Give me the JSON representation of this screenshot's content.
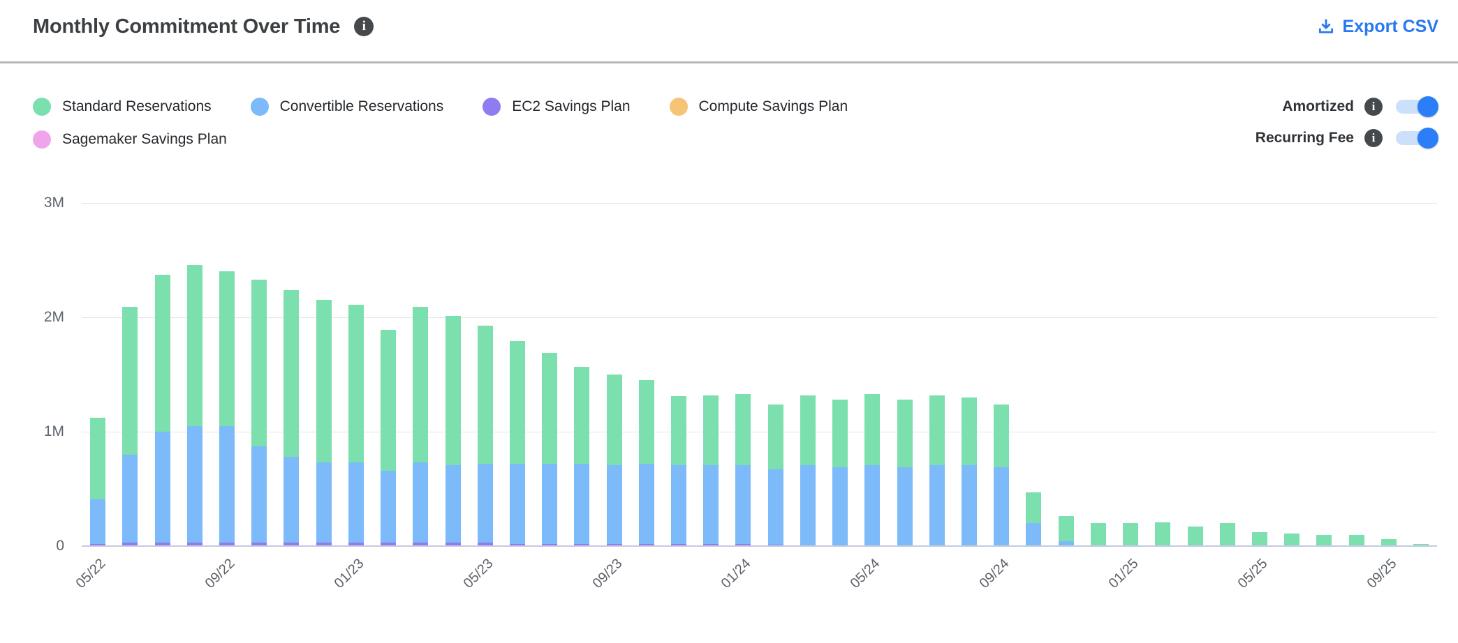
{
  "header": {
    "title": "Monthly Commitment Over Time",
    "export_label": "Export CSV"
  },
  "toggles": [
    {
      "label": "Amortized",
      "state": "on"
    },
    {
      "label": "Recurring Fee",
      "state": "on"
    }
  ],
  "colors": {
    "standard_green": "#7cdfae",
    "convertible_blue": "#7cbafa",
    "ec2_purple": "#8f7cf0",
    "compute_orange": "#f7c374",
    "sagemaker_pink": "#efa5ec",
    "accent_blue": "#2778f2",
    "toggle_track": "#cce0fb",
    "toggle_knob": "#2b7ef7",
    "gridline": "#e4e4e7",
    "axis_line": "#c5cbdf"
  },
  "icons": {
    "title_info": "info-icon",
    "export": "download-icon"
  },
  "chart_data": {
    "type": "bar",
    "stacked": true,
    "title": "Monthly Commitment Over Time",
    "xlabel": "",
    "ylabel": "",
    "ylim": [
      0,
      3
    ],
    "grid": true,
    "legend_position": "top-left",
    "categories": [
      "05/22",
      "06/22",
      "07/22",
      "08/22",
      "09/22",
      "10/22",
      "11/22",
      "12/22",
      "01/23",
      "02/23",
      "03/23",
      "04/23",
      "05/23",
      "06/23",
      "07/23",
      "08/23",
      "09/23",
      "10/23",
      "11/23",
      "12/23",
      "01/24",
      "02/24",
      "03/24",
      "04/24",
      "05/24",
      "06/24",
      "07/24",
      "08/24",
      "09/24",
      "10/24",
      "11/24",
      "12/24",
      "01/25",
      "02/25",
      "03/25",
      "04/25",
      "05/25",
      "06/25",
      "07/25",
      "08/25",
      "09/25",
      "10/25"
    ],
    "x_tick_every": 4,
    "visible_x_ticks": [
      "05/22",
      "09/22",
      "01/23",
      "05/23",
      "09/23",
      "01/24",
      "05/24",
      "09/24",
      "01/25",
      "05/25",
      "09/25"
    ],
    "y_ticks": [
      {
        "label": "3M",
        "value": 3
      },
      {
        "label": "2M",
        "value": 2
      },
      {
        "label": "1M",
        "value": 1
      },
      {
        "label": "0",
        "value": 0
      }
    ],
    "unit": "M (millions)",
    "stack_order_bottom_to_top": [
      "EC2 Savings Plan",
      "Convertible Reservations",
      "Standard Reservations",
      "Compute Savings Plan",
      "Sagemaker Savings Plan"
    ],
    "series": [
      {
        "name": "Standard Reservations",
        "color": "#7cdfae",
        "values": [
          0.71,
          1.29,
          1.37,
          1.41,
          1.35,
          1.46,
          1.46,
          1.42,
          1.38,
          1.23,
          1.36,
          1.3,
          1.21,
          1.07,
          0.97,
          0.85,
          0.79,
          0.73,
          0.6,
          0.61,
          0.62,
          0.57,
          0.61,
          0.59,
          0.62,
          0.59,
          0.61,
          0.59,
          0.55,
          0.27,
          0.22,
          0.2,
          0.2,
          0.21,
          0.17,
          0.2,
          0.12,
          0.11,
          0.1,
          0.1,
          0.06,
          0.02
        ]
      },
      {
        "name": "Convertible Reservations",
        "color": "#7cbafa",
        "values": [
          0.39,
          0.77,
          0.97,
          1.02,
          1.02,
          0.84,
          0.75,
          0.7,
          0.7,
          0.63,
          0.7,
          0.68,
          0.69,
          0.7,
          0.7,
          0.7,
          0.69,
          0.7,
          0.69,
          0.69,
          0.69,
          0.66,
          0.71,
          0.69,
          0.71,
          0.69,
          0.71,
          0.71,
          0.69,
          0.2,
          0.04,
          0,
          0,
          0,
          0,
          0,
          0,
          0,
          0,
          0,
          0,
          0
        ]
      },
      {
        "name": "EC2 Savings Plan",
        "color": "#8f7cf0",
        "values": [
          0.02,
          0.03,
          0.03,
          0.03,
          0.03,
          0.03,
          0.03,
          0.03,
          0.03,
          0.03,
          0.03,
          0.03,
          0.03,
          0.02,
          0.02,
          0.02,
          0.02,
          0.02,
          0.02,
          0.02,
          0.02,
          0.01,
          0,
          0,
          0,
          0,
          0,
          0,
          0,
          0,
          0,
          0,
          0,
          0,
          0,
          0,
          0,
          0,
          0,
          0,
          0,
          0
        ]
      },
      {
        "name": "Compute Savings Plan",
        "color": "#f7c374",
        "values": [
          0,
          0,
          0,
          0,
          0,
          0,
          0,
          0,
          0,
          0,
          0,
          0,
          0,
          0,
          0,
          0,
          0,
          0,
          0,
          0,
          0,
          0,
          0,
          0,
          0,
          0,
          0,
          0,
          0,
          0,
          0,
          0,
          0,
          0,
          0,
          0,
          0,
          0,
          0,
          0,
          0,
          0
        ]
      },
      {
        "name": "Sagemaker Savings Plan",
        "color": "#efa5ec",
        "values": [
          0,
          0,
          0,
          0,
          0,
          0,
          0,
          0,
          0,
          0,
          0,
          0,
          0,
          0,
          0,
          0,
          0,
          0,
          0,
          0,
          0,
          0,
          0,
          0,
          0,
          0,
          0,
          0,
          0,
          0,
          0,
          0,
          0,
          0,
          0,
          0,
          0,
          0,
          0,
          0,
          0,
          0
        ]
      }
    ]
  }
}
